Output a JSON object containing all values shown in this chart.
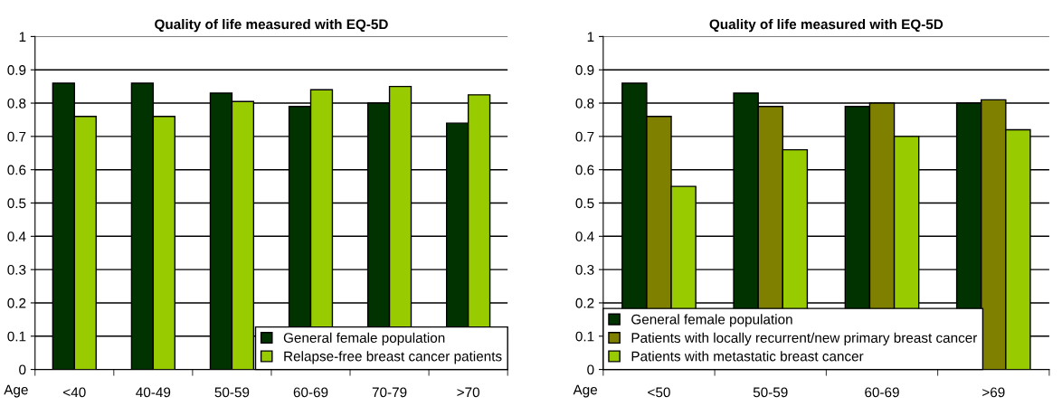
{
  "chart_data": [
    {
      "type": "bar",
      "title": "Quality of life measured with EQ-5D",
      "xlabel": "Age",
      "categories": [
        "<40",
        "40-49",
        "50-59",
        "60-69",
        "70-79",
        ">70"
      ],
      "series": [
        {
          "name": "General female population",
          "color": "#003300",
          "values": [
            0.86,
            0.86,
            0.83,
            0.79,
            0.8,
            0.74
          ]
        },
        {
          "name": "Relapse-free breast cancer patients",
          "color": "#99cc00",
          "values": [
            0.76,
            0.76,
            0.805,
            0.84,
            0.85,
            0.825
          ]
        }
      ],
      "ylim": [
        0,
        1
      ],
      "yticks": [
        0,
        0.1,
        0.2,
        0.3,
        0.4,
        0.5,
        0.6,
        0.7,
        0.8,
        0.9,
        1
      ],
      "grid": "y",
      "legend": "bottom right"
    },
    {
      "type": "bar",
      "title": "Quality of life measured with EQ-5D",
      "xlabel": "Age",
      "categories": [
        "<50",
        "50-59",
        "60-69",
        ">69"
      ],
      "series": [
        {
          "name": "General female population",
          "color": "#003300",
          "values": [
            0.86,
            0.83,
            0.79,
            0.8
          ]
        },
        {
          "name": "Patients with locally recurrent/new primary breast cancer",
          "color": "#808000",
          "values": [
            0.76,
            0.79,
            0.8,
            0.81
          ]
        },
        {
          "name": "Patients with metastatic breast cancer",
          "color": "#99cc00",
          "values": [
            0.55,
            0.66,
            0.7,
            0.72
          ]
        }
      ],
      "ylim": [
        0,
        1
      ],
      "yticks": [
        0,
        0.1,
        0.2,
        0.3,
        0.4,
        0.5,
        0.6,
        0.7,
        0.8,
        0.9,
        1
      ],
      "grid": "y",
      "legend": "bottom left"
    }
  ]
}
